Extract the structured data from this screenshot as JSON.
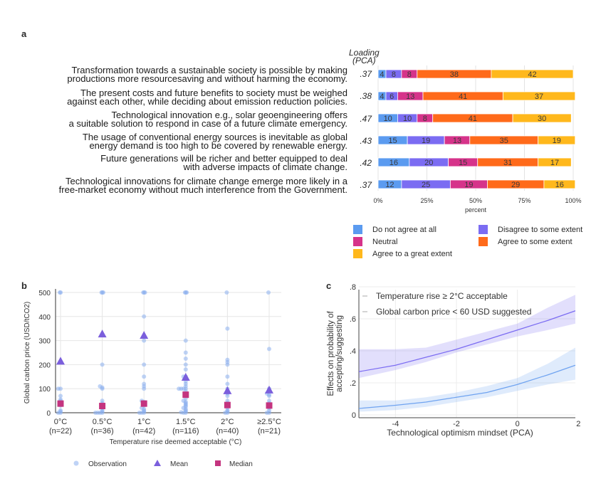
{
  "panel_labels": {
    "a": "a",
    "b": "b",
    "c": "c"
  },
  "panel_a": {
    "loading_header": [
      "Loading",
      "(PCA)"
    ],
    "statements": [
      {
        "lines": [
          "Transformation towards a sustainable society is possible by making",
          "productions more resourcesaving and without harming the economy."
        ],
        "loading": ".37"
      },
      {
        "lines": [
          "The present costs and future benefits to society must be weighed",
          "against each other, while deciding about emission reduction policies."
        ],
        "loading": ".38"
      },
      {
        "lines": [
          "Technological innovation e.g., solar geoengineering offers",
          "a suitable solution to respond in case of a future climate emergency."
        ],
        "loading": ".47"
      },
      {
        "lines": [
          "The usage of conventional energy sources is inevitable as global",
          "energy demand is too high to be covered by renewable energy."
        ],
        "loading": ".43"
      },
      {
        "lines": [
          "Future generations will be richer and better equipped to deal",
          "with adverse impacts of climate change."
        ],
        "loading": ".42"
      },
      {
        "lines": [
          "Technological innovations for climate change emerge more likely in a",
          "free-market economy without much interference from the Government."
        ],
        "loading": ".37"
      }
    ],
    "x_ticks": [
      "0%",
      "25%",
      "50%",
      "75%",
      "100%"
    ],
    "x_label": "percent",
    "legend": [
      {
        "label": "Do not agree at all",
        "color": "#5b9bf0"
      },
      {
        "label": "Disagree to some extent",
        "color": "#7b6cf2"
      },
      {
        "label": "Neutral",
        "color": "#d6338a"
      },
      {
        "label": "Agree to some extent",
        "color": "#ff6a1a"
      },
      {
        "label": "Agree to a great extent",
        "color": "#ffb81c"
      }
    ]
  },
  "chart_data": [
    {
      "type": "bar",
      "orientation": "horizontal",
      "stacked": true,
      "categories": [
        "Transformation towards a sustainable society",
        "Present costs and future benefits",
        "Technological innovation e.g., solar geoengineering",
        "Usage of conventional energy sources",
        "Future generations richer",
        "Technological innovations in free-market economy"
      ],
      "series": [
        {
          "name": "Do not agree at all",
          "values": [
            4,
            4,
            10,
            15,
            16,
            12
          ]
        },
        {
          "name": "Disagree to some extent",
          "values": [
            8,
            6,
            10,
            19,
            20,
            25
          ]
        },
        {
          "name": "Neutral",
          "values": [
            8,
            13,
            8,
            13,
            15,
            19
          ]
        },
        {
          "name": "Agree to some extent",
          "values": [
            38,
            41,
            41,
            35,
            31,
            29
          ]
        },
        {
          "name": "Agree to a great extent",
          "values": [
            42,
            37,
            30,
            19,
            17,
            16
          ]
        }
      ],
      "xlabel": "percent",
      "xlim": [
        0,
        100
      ],
      "grid": true
    },
    {
      "type": "scatter",
      "categories": [
        "0°C",
        "0.5°C",
        "1°C",
        "1.5°C",
        "2°C",
        "≥2.5°C"
      ],
      "n_labels": [
        "(n=22)",
        "(n=36)",
        "(n=42)",
        "(n=116)",
        "(n=40)",
        "(n=21)"
      ],
      "mean": [
        215,
        328,
        322,
        148,
        92,
        95
      ],
      "median": [
        38,
        28,
        38,
        75,
        32,
        30
      ],
      "observations": [
        [
          0,
          0,
          5,
          10,
          30,
          50,
          55,
          70,
          100,
          100,
          500,
          500
        ],
        [
          0,
          0,
          0,
          0,
          5,
          10,
          20,
          30,
          40,
          50,
          100,
          105,
          110,
          200,
          500,
          500,
          500
        ],
        [
          0,
          0,
          0,
          5,
          10,
          15,
          20,
          30,
          45,
          50,
          100,
          110,
          120,
          150,
          200,
          300,
          400,
          500,
          500,
          500
        ],
        [
          0,
          0,
          2,
          5,
          10,
          15,
          20,
          25,
          30,
          35,
          40,
          45,
          50,
          60,
          70,
          80,
          90,
          100,
          100,
          100,
          100,
          110,
          120,
          130,
          150,
          150,
          180,
          200,
          225,
          250,
          300,
          500,
          500,
          500
        ],
        [
          0,
          0,
          5,
          10,
          20,
          40,
          50,
          70,
          80,
          100,
          120,
          150,
          200,
          210,
          220,
          350,
          500
        ],
        [
          0,
          0,
          10,
          20,
          40,
          50,
          70,
          75,
          80,
          100,
          265,
          500
        ]
      ],
      "ylabel": "Global carbon price (USD/tCO2)",
      "xlabel": "Temperature rise deemed acceptable (°C)",
      "ylim": [
        0,
        500
      ],
      "y_ticks": [
        0,
        100,
        200,
        300,
        400,
        500
      ],
      "legend": [
        "Observation",
        "Mean",
        "Median"
      ],
      "colors": {
        "observation": "#8aaeee",
        "mean": "#7b5fdc",
        "median": "#c4347f"
      }
    },
    {
      "type": "line",
      "x_ticks": [
        -4,
        -2,
        0,
        2
      ],
      "y_ticks": [
        ".8",
        ".6",
        ".4",
        ".2",
        "0"
      ],
      "xlim": [
        -5.2,
        1.9
      ],
      "ylim": [
        0,
        0.8
      ],
      "xlabel": "Technological optimism mindset (PCA)",
      "ylabel": "Effects on probability of accepting/suggesting",
      "series": [
        {
          "name": "Temperature rise ≥ 2°C acceptable",
          "x": [
            -5.2,
            -4,
            -3,
            -2,
            -1,
            0,
            1,
            1.9
          ],
          "y": [
            0.27,
            0.31,
            0.36,
            0.41,
            0.47,
            0.53,
            0.59,
            0.65
          ],
          "lower": [
            0.23,
            0.28,
            0.33,
            0.39,
            0.44,
            0.49,
            0.53,
            0.57
          ],
          "upper": [
            0.41,
            0.41,
            0.42,
            0.47,
            0.52,
            0.57,
            0.67,
            0.75
          ],
          "color": "#7b6cf2"
        },
        {
          "name": "Global carbon price < 60 USD suggested",
          "x": [
            -5.2,
            -4,
            -3,
            -2,
            -1,
            0,
            1,
            1.9
          ],
          "y": [
            0.04,
            0.06,
            0.08,
            0.11,
            0.14,
            0.19,
            0.25,
            0.31
          ],
          "lower": [
            0.02,
            0.03,
            0.05,
            0.08,
            0.11,
            0.15,
            0.19,
            0.22
          ],
          "upper": [
            0.09,
            0.09,
            0.11,
            0.14,
            0.18,
            0.23,
            0.32,
            0.42
          ],
          "color": "#6fa3f0"
        }
      ],
      "grid": true
    }
  ]
}
